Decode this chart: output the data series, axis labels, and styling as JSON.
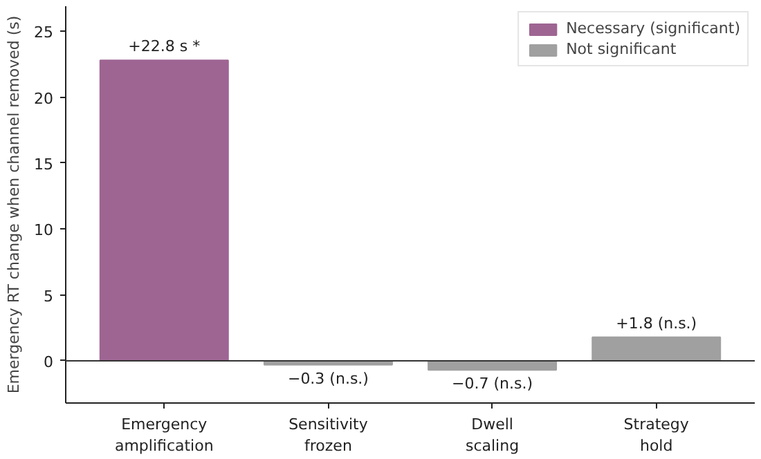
{
  "chart_data": {
    "type": "bar",
    "ylabel": "Emergency RT change when channel removed (s)",
    "categories": [
      "Emergency\namplification",
      "Sensitivity\nfrozen",
      "Dwell\nscaling",
      "Strategy\nhold"
    ],
    "series": [
      {
        "name": "Necessary (significant)",
        "color": "#9e6592",
        "values": [
          22.8,
          null,
          null,
          null
        ],
        "value_labels": [
          "+22.8 s *",
          null,
          null,
          null
        ]
      },
      {
        "name": "Not significant",
        "color": "#a0a0a0",
        "values": [
          null,
          -0.3,
          -0.7,
          1.8
        ],
        "value_labels": [
          null,
          "−0.3 (n.s.)",
          "−0.7 (n.s.)",
          "+1.8 (n.s.)"
        ]
      }
    ],
    "ylim": [
      -3.2,
      26.9
    ],
    "yticks": [
      0,
      5,
      10,
      15,
      20,
      25
    ],
    "ref_lines": [
      {
        "axis": "y",
        "value": 0,
        "color": "#333333"
      }
    ],
    "grid": false,
    "legend": "top right"
  }
}
